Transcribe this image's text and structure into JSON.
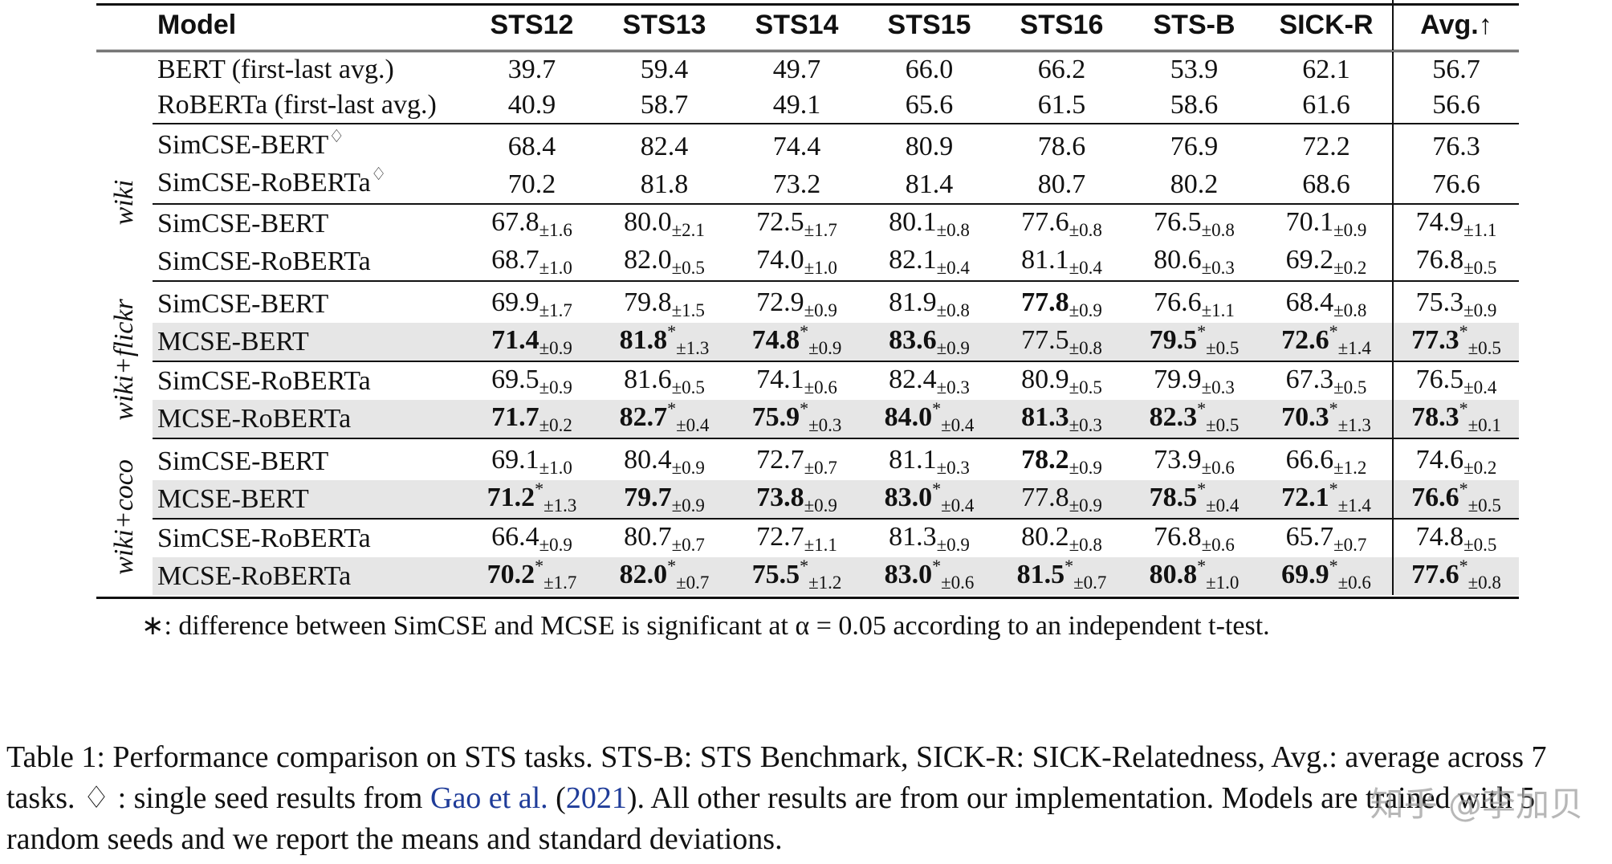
{
  "headers": [
    "Model",
    "STS12",
    "STS13",
    "STS14",
    "STS15",
    "STS16",
    "STS-B",
    "SICK-R",
    "Avg.↑"
  ],
  "baselines": [
    {
      "model": "BERT (first-last avg.)",
      "values": [
        "39.7",
        "59.4",
        "49.7",
        "66.0",
        "66.2",
        "53.9",
        "62.1",
        "56.7"
      ]
    },
    {
      "model": "RoBERTa (first-last avg.)",
      "values": [
        "40.9",
        "58.7",
        "49.1",
        "65.6",
        "61.5",
        "58.6",
        "61.6",
        "56.6"
      ]
    }
  ],
  "wiki": {
    "label": "wiki",
    "gao": [
      {
        "model": "SimCSE-BERT",
        "diamond": "♢",
        "values": [
          "68.4",
          "82.4",
          "74.4",
          "80.9",
          "78.6",
          "76.9",
          "72.2",
          "76.3"
        ]
      },
      {
        "model": "SimCSE-RoBERTa",
        "diamond": "♢",
        "values": [
          "70.2",
          "81.8",
          "73.2",
          "81.4",
          "80.7",
          "80.2",
          "68.6",
          "76.6"
        ]
      }
    ],
    "ours": [
      {
        "model": "SimCSE-BERT",
        "values": [
          "67.8",
          "80.0",
          "72.5",
          "80.1",
          "77.6",
          "76.5",
          "70.1",
          "74.9"
        ],
        "stds": [
          "±1.6",
          "±2.1",
          "±1.7",
          "±0.8",
          "±0.8",
          "±0.8",
          "±0.9",
          "±1.1"
        ]
      },
      {
        "model": "SimCSE-RoBERTa",
        "values": [
          "68.7",
          "82.0",
          "74.0",
          "82.1",
          "81.1",
          "80.6",
          "69.2",
          "76.8"
        ],
        "stds": [
          "±1.0",
          "±0.5",
          "±1.0",
          "±0.4",
          "±0.4",
          "±0.3",
          "±0.2",
          "±0.5"
        ]
      }
    ]
  },
  "flickr": {
    "label": "wiki+flickr",
    "rows": [
      {
        "model": "SimCSE-BERT",
        "values": [
          "69.9",
          "79.8",
          "72.9",
          "81.9",
          "77.8",
          "76.6",
          "68.4",
          "75.3"
        ],
        "stds": [
          "±1.7",
          "±1.5",
          "±0.9",
          "±0.8",
          "±0.9",
          "±1.1",
          "±0.8",
          "±0.9"
        ]
      },
      {
        "model": "MCSE-BERT",
        "values": [
          "71.4",
          "81.8",
          "74.8",
          "83.6",
          "77.5",
          "79.5",
          "72.6",
          "77.3"
        ],
        "stds": [
          "±0.9",
          "±1.3",
          "±0.9",
          "±0.9",
          "±0.8",
          "±0.5",
          "±1.4",
          "±0.5"
        ]
      },
      {
        "model": "SimCSE-RoBERTa",
        "values": [
          "69.5",
          "81.6",
          "74.1",
          "82.4",
          "80.9",
          "79.9",
          "67.3",
          "76.5"
        ],
        "stds": [
          "±0.9",
          "±0.5",
          "±0.6",
          "±0.3",
          "±0.5",
          "±0.3",
          "±0.5",
          "±0.4"
        ]
      },
      {
        "model": "MCSE-RoBERTa",
        "values": [
          "71.7",
          "82.7",
          "75.9",
          "84.0",
          "81.3",
          "82.3",
          "70.3",
          "78.3"
        ],
        "stds": [
          "±0.2",
          "±0.4",
          "±0.3",
          "±0.4",
          "±0.3",
          "±0.5",
          "±1.3",
          "±0.1"
        ]
      }
    ]
  },
  "coco": {
    "label": "wiki+coco",
    "rows": [
      {
        "model": "SimCSE-BERT",
        "values": [
          "69.1",
          "80.4",
          "72.7",
          "81.1",
          "78.2",
          "73.9",
          "66.6",
          "74.6"
        ],
        "stds": [
          "±1.0",
          "±0.9",
          "±0.7",
          "±0.3",
          "±0.9",
          "±0.6",
          "±1.2",
          "±0.2"
        ]
      },
      {
        "model": "MCSE-BERT",
        "values": [
          "71.2",
          "79.7",
          "73.8",
          "83.0",
          "77.8",
          "78.5",
          "72.1",
          "76.6"
        ],
        "stds": [
          "±1.3",
          "±0.9",
          "±0.9",
          "±0.4",
          "±0.9",
          "±0.4",
          "±1.4",
          "±0.5"
        ]
      },
      {
        "model": "SimCSE-RoBERTa",
        "values": [
          "66.4",
          "80.7",
          "72.7",
          "81.3",
          "80.2",
          "76.8",
          "65.7",
          "74.8"
        ],
        "stds": [
          "±0.9",
          "±0.7",
          "±1.1",
          "±0.9",
          "±0.8",
          "±0.6",
          "±0.7",
          "±0.5"
        ]
      },
      {
        "model": "MCSE-RoBERTa",
        "values": [
          "70.2",
          "82.0",
          "75.5",
          "83.0",
          "81.5",
          "80.8",
          "69.9",
          "77.6"
        ],
        "stds": [
          "±1.7",
          "±0.7",
          "±1.2",
          "±0.6",
          "±0.7",
          "±1.0",
          "±0.6",
          "±0.8"
        ]
      }
    ]
  },
  "footnote": "∗: difference between SimCSE and MCSE is significant at α = 0.05 according to an independent t-test.",
  "caption": {
    "part1": "Table 1: Performance comparison on STS tasks. STS-B: STS Benchmark, SICK-R: SICK-Relatedness, Avg.: average across 7 tasks. ♢ : single seed results from ",
    "link1": "Gao et al.",
    "part2": " (",
    "link2": "2021",
    "part3": "). All other results are from our implementation. Models are trained with 5 random seeds and we report the means and standard deviations."
  },
  "watermark": "知乎 @李加贝"
}
